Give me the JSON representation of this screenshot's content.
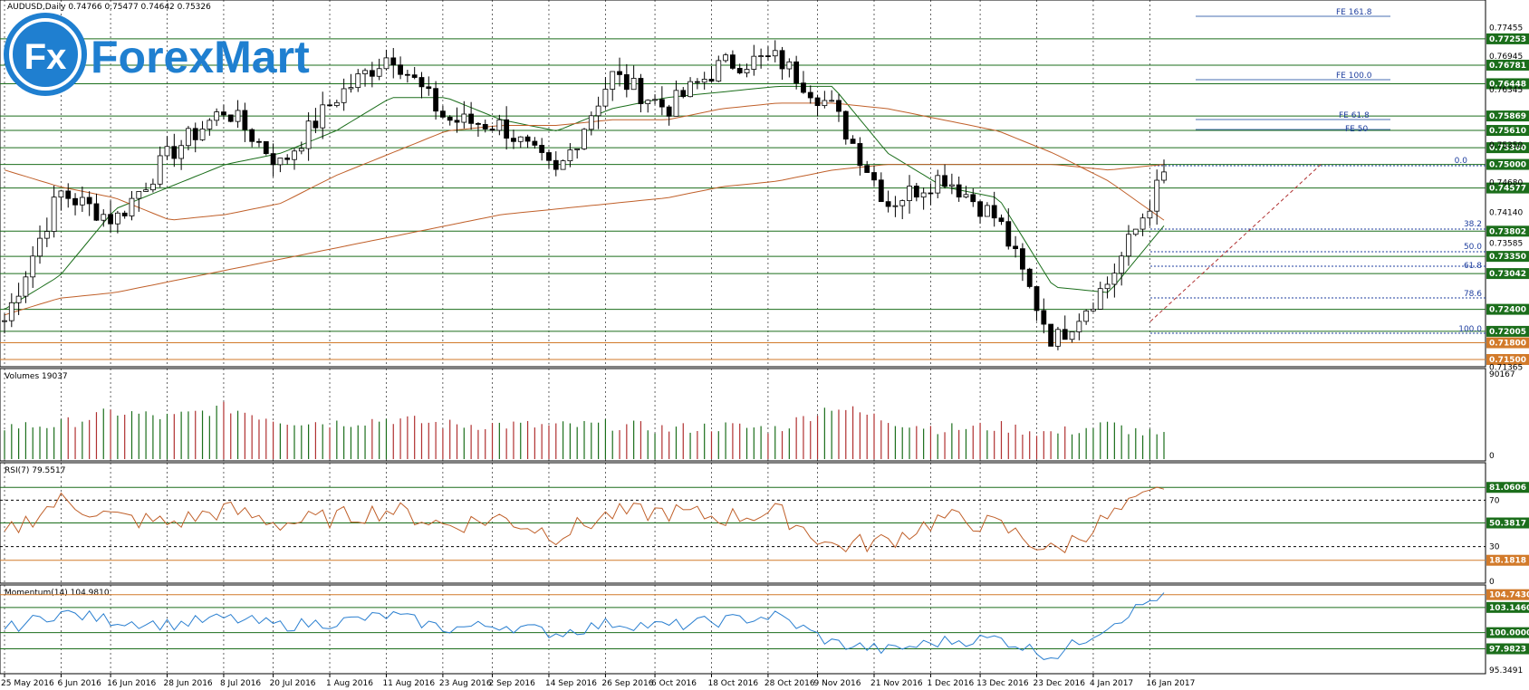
{
  "brand": {
    "name": "ForexMart",
    "badge": "Fx"
  },
  "main_header": "AUDUSD,Daily  0.74766 0.75477 0.74642 0.75326",
  "price_axis_labels": [
    "0.77455",
    "0.76945",
    "0.76345",
    "0.75350",
    "0.74680",
    "0.74140",
    "0.73585",
    "0.71365"
  ],
  "levels": [
    {
      "value": "0.77253",
      "color": "#1b6e1b"
    },
    {
      "value": "0.76781",
      "color": "#1b6e1b"
    },
    {
      "value": "0.76448",
      "color": "#1b6e1b"
    },
    {
      "value": "0.75869",
      "color": "#1b6e1b"
    },
    {
      "value": "0.75610",
      "color": "#1b6e1b"
    },
    {
      "value": "0.75300",
      "color": "#1b6e1b"
    },
    {
      "value": "0.75000",
      "color": "#1b6e1b"
    },
    {
      "value": "0.74577",
      "color": "#1b6e1b"
    },
    {
      "value": "0.73802",
      "color": "#1b6e1b"
    },
    {
      "value": "0.73350",
      "color": "#1b6e1b"
    },
    {
      "value": "0.73042",
      "color": "#1b6e1b"
    },
    {
      "value": "0.72400",
      "color": "#1b6e1b"
    },
    {
      "value": "0.72005",
      "color": "#1b6e1b"
    },
    {
      "value": "0.71800",
      "color": "#d27a2a"
    },
    {
      "value": "0.71500",
      "color": "#d27a2a"
    }
  ],
  "fibo_ext": [
    "FE 161.8",
    "FE 100.0",
    "FE 61.8",
    "FE 50"
  ],
  "fibo_ret": [
    "0.0",
    "38.2",
    "50.0",
    "61.8",
    "78.6",
    "100.0"
  ],
  "volumes": {
    "header": "Volumes 19037",
    "axis_top": "90167",
    "axis_bottom": "0"
  },
  "rsi": {
    "header": "RSI(7) 79.5517",
    "axis": [
      "81.0606",
      "70",
      "50.3817",
      "30",
      "18.1818",
      "0"
    ]
  },
  "momentum": {
    "header": "Momentum(14) 104.9810",
    "axis": [
      "104.7430",
      "103.1460",
      "100.0000",
      "97.9823",
      "95.3491"
    ]
  },
  "dates": [
    "25 May 2016",
    "6 Jun 2016",
    "16 Jun 2016",
    "28 Jun 2016",
    "8 Jul 2016",
    "20 Jul 2016",
    "1 Aug 2016",
    "11 Aug 2016",
    "23 Aug 2016",
    "2 Sep 2016",
    "14 Sep 2016",
    "26 Sep 2016",
    "6 Oct 2016",
    "18 Oct 2016",
    "28 Oct 2016",
    "9 Nov 2016",
    "21 Nov 2016",
    "1 Dec 2016",
    "13 Dec 2016",
    "23 Dec 2016",
    "4 Jan 2017",
    "16 Jan 2017"
  ],
  "chart_data": {
    "type": "line",
    "title": "AUDUSD,Daily",
    "ohlc_header": {
      "open": 0.74766,
      "high": 0.75477,
      "low": 0.74642,
      "close": 0.75326
    },
    "x": [
      "25 May 2016",
      "6 Jun 2016",
      "16 Jun 2016",
      "28 Jun 2016",
      "8 Jul 2016",
      "20 Jul 2016",
      "1 Aug 2016",
      "11 Aug 2016",
      "23 Aug 2016",
      "2 Sep 2016",
      "14 Sep 2016",
      "26 Sep 2016",
      "6 Oct 2016",
      "18 Oct 2016",
      "28 Oct 2016",
      "9 Nov 2016",
      "21 Nov 2016",
      "1 Dec 2016",
      "13 Dec 2016",
      "23 Dec 2016",
      "4 Jan 2017",
      "16 Jan 2017"
    ],
    "ylim": [
      0.7137,
      0.7795
    ],
    "series": [
      {
        "values": [
          0.722,
          0.745,
          0.74,
          0.752,
          0.76,
          0.75,
          0.762,
          0.77,
          0.758,
          0.757,
          0.748,
          0.766,
          0.76,
          0.768,
          0.769,
          0.76,
          0.743,
          0.748,
          0.74,
          0.718,
          0.729,
          0.748
        ]
      },
      {
        "values": [
          0.724,
          0.73,
          0.742,
          0.746,
          0.75,
          0.752,
          0.756,
          0.762,
          0.762,
          0.758,
          0.756,
          0.76,
          0.762,
          0.763,
          0.764,
          0.764,
          0.752,
          0.746,
          0.744,
          0.728,
          0.727,
          0.739
        ]
      },
      {
        "values": [
          0.749,
          0.746,
          0.744,
          0.74,
          0.741,
          0.743,
          0.748,
          0.752,
          0.756,
          0.757,
          0.757,
          0.758,
          0.758,
          0.76,
          0.761,
          0.761,
          0.76,
          0.758,
          0.756,
          0.752,
          0.747,
          0.74
        ]
      },
      {
        "values": [
          0.723,
          0.726,
          0.727,
          0.729,
          0.731,
          0.733,
          0.735,
          0.737,
          0.739,
          0.741,
          0.742,
          0.743,
          0.744,
          0.746,
          0.747,
          0.749,
          0.75,
          0.75,
          0.75,
          0.75,
          0.749,
          0.75
        ]
      }
    ],
    "volumes": [
      38,
      40,
      55,
      48,
      60,
      45,
      42,
      47,
      40,
      40,
      38,
      40,
      35,
      38,
      35,
      62,
      45,
      35,
      38,
      30,
      40,
      25
    ],
    "rsi": [
      40,
      70,
      55,
      50,
      62,
      50,
      55,
      62,
      48,
      55,
      40,
      58,
      60,
      55,
      60,
      30,
      35,
      55,
      48,
      25,
      55,
      79.55
    ],
    "momentum": [
      100.4,
      102.5,
      101.5,
      101.0,
      101.8,
      100.9,
      101.3,
      102.2,
      100.5,
      101.0,
      99.9,
      101.2,
      100.8,
      101.5,
      102.1,
      98.7,
      97.8,
      98.9,
      99.3,
      97.0,
      101.0,
      104.98
    ]
  }
}
